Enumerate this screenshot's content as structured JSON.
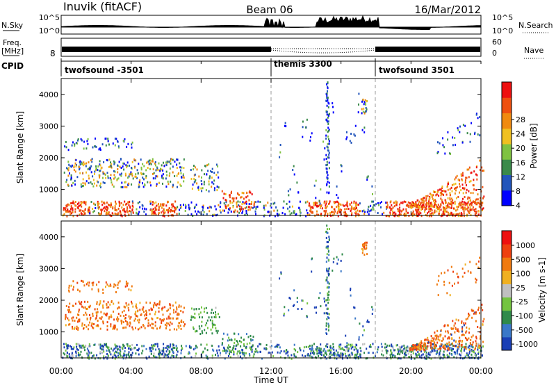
{
  "header": {
    "station": "Inuvik (fitACF)",
    "beam": "Beam 06",
    "date": "16/Mar/2012"
  },
  "noise_panel": {
    "left_label": "N.Sky",
    "left_ticks": [
      "10^5",
      "10^0"
    ],
    "right_ticks": [
      "10^5",
      "10^0"
    ],
    "right_label": "N.Search"
  },
  "freq_panel": {
    "left_label_1": "Freq.",
    "left_label_2": "[MHz]",
    "left_ticks": [
      "8"
    ],
    "right_ticks": [
      "60",
      "0"
    ],
    "right_label": "Nave"
  },
  "cpid_panel": {
    "label": "CPID",
    "segments": [
      {
        "name": "twofsound -3501",
        "start": "00:00",
        "end": "12:00"
      },
      {
        "name": "themis 3300",
        "start": "12:00",
        "end": "18:00"
      },
      {
        "name": "twofsound 3501",
        "start": "18:00",
        "end": "24:00"
      }
    ]
  },
  "power_panel": {
    "ylabel": "Slant Range [km]",
    "yticks": [
      "4000",
      "3000",
      "2000",
      "1000"
    ],
    "colorbar_label": "Power [dB]",
    "colorbar_ticks": [
      "28",
      "24",
      "20",
      "16",
      "12",
      "8",
      "4"
    ],
    "colors": [
      "#0000ff",
      "#2255bb",
      "#3a8a4a",
      "#7fc241",
      "#f0c020",
      "#f08a10",
      "#ee5010",
      "#ee1010"
    ]
  },
  "velocity_panel": {
    "ylabel": "Slant Range [km]",
    "yticks": [
      "4000",
      "3000",
      "2000",
      "1000"
    ],
    "colorbar_label": "Velocity [m s-1]",
    "colorbar_ticks": [
      "1000",
      "500",
      "100",
      "25",
      "-25",
      "-100",
      "-500",
      "-1000"
    ],
    "colors": [
      "#1a3fb5",
      "#3a78c8",
      "#2f8a4a",
      "#74c440",
      "#c0c0c0",
      "#f0b020",
      "#f07a10",
      "#ee4010",
      "#ee1010"
    ]
  },
  "time_axis": {
    "ticks": [
      "00:00",
      "04:00",
      "08:00",
      "12:00",
      "16:00",
      "20:00",
      "00:00"
    ],
    "label": "Time UT"
  },
  "chart_data": {
    "type": "heatmap",
    "title": "Inuvik (fitACF) Beam 06 16/Mar/2012",
    "xlabel": "Time UT",
    "ylabel": "Slant Range [km]",
    "xlim_hours": [
      0,
      24
    ],
    "ylim_km": [
      180,
      4500
    ],
    "mode_changes_hours": [
      12,
      18
    ],
    "power_colorbar_db": [
      4,
      8,
      12,
      16,
      20,
      24,
      28
    ],
    "velocity_colorbar_ms": [
      1000,
      500,
      100,
      25,
      -25,
      -100,
      -500,
      -1000
    ]
  }
}
